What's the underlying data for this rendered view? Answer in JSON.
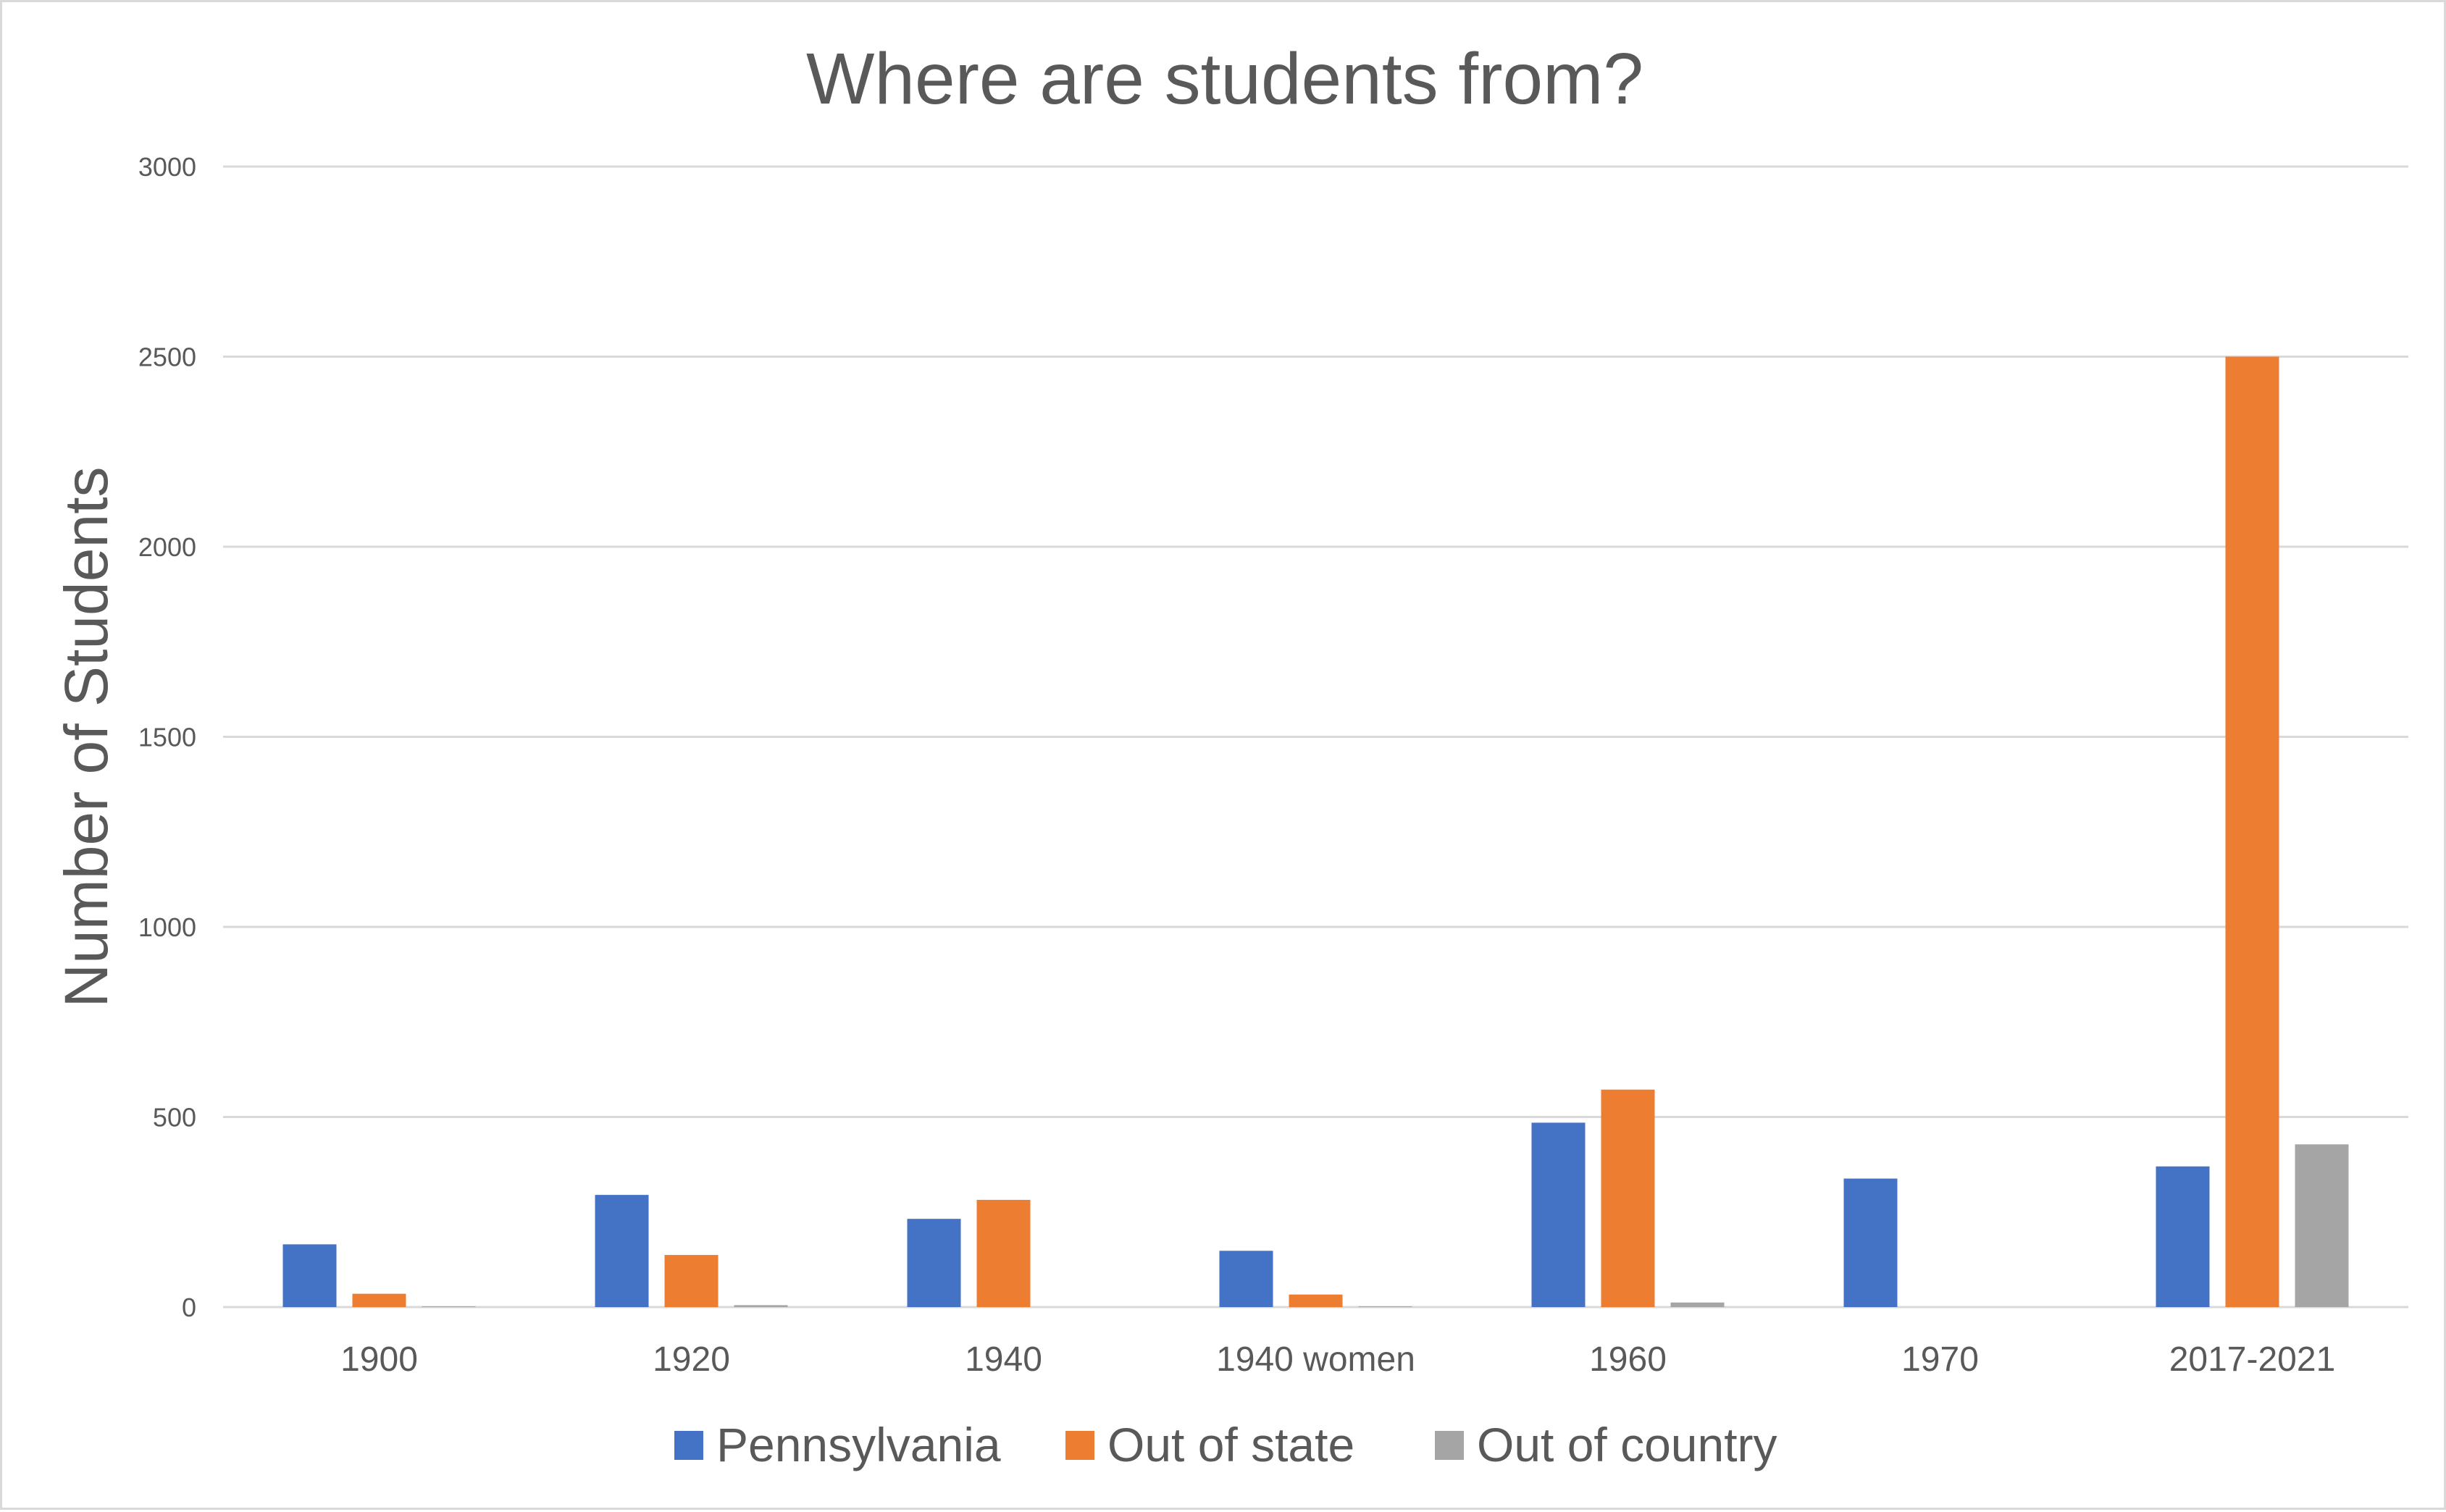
{
  "chart_data": {
    "type": "bar",
    "title": "Where are students from?",
    "ylabel": "Number of Students",
    "xlabel": "",
    "categories": [
      "1900",
      "1920",
      "1940",
      "1940 women",
      "1960",
      "1970",
      "2017-2021"
    ],
    "series": [
      {
        "name": "Pennsylvania",
        "color": "#4472c4",
        "values": [
          165,
          295,
          232,
          148,
          485,
          338,
          370
        ]
      },
      {
        "name": "Out of state",
        "color": "#ed7d31",
        "values": [
          35,
          137,
          282,
          33,
          572,
          0,
          2500
        ]
      },
      {
        "name": "Out of country",
        "color": "#a5a5a5",
        "values": [
          2,
          5,
          0,
          2,
          12,
          0,
          428
        ]
      }
    ],
    "ylim": [
      0,
      3000
    ],
    "yticks": [
      0,
      500,
      1000,
      1500,
      2000,
      2500,
      3000
    ],
    "grid": true,
    "legend": "bottom-center"
  }
}
